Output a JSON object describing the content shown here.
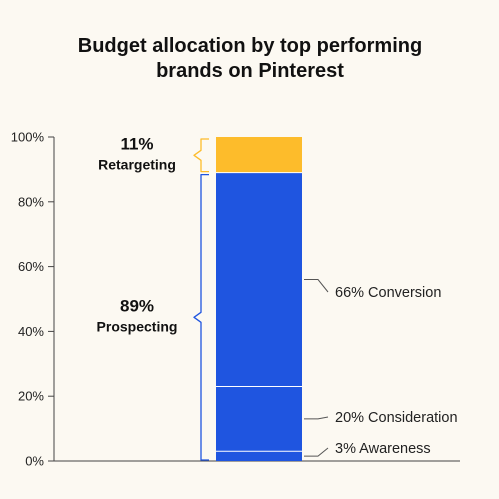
{
  "chart_data": {
    "type": "bar",
    "stacked": true,
    "title": "Budget allocation by top performing brands on Pinterest",
    "title_lines": [
      "Budget allocation by top performing",
      "brands on Pinterest"
    ],
    "ylim": [
      0,
      100
    ],
    "y_ticks": [
      "0%",
      "20%",
      "40%",
      "60%",
      "80%",
      "100%"
    ],
    "grid": false,
    "segments": [
      {
        "name": "3% Awareness",
        "value": 3,
        "color": "#1f55e0"
      },
      {
        "name": "20% Consideration",
        "value": 20,
        "color": "#1f55e0"
      },
      {
        "name": "66% Conversion",
        "value": 66,
        "color": "#1f55e0"
      },
      {
        "name": "Retargeting",
        "value": 11,
        "color": "#fdbc2b"
      }
    ],
    "groups": [
      {
        "pct": "89%",
        "label": "Prospecting",
        "from": 0,
        "to": 89,
        "color": "#1f55e0"
      },
      {
        "pct": "11%",
        "label": "Retargeting",
        "from": 89,
        "to": 100,
        "color": "#fdbc2b"
      }
    ]
  }
}
